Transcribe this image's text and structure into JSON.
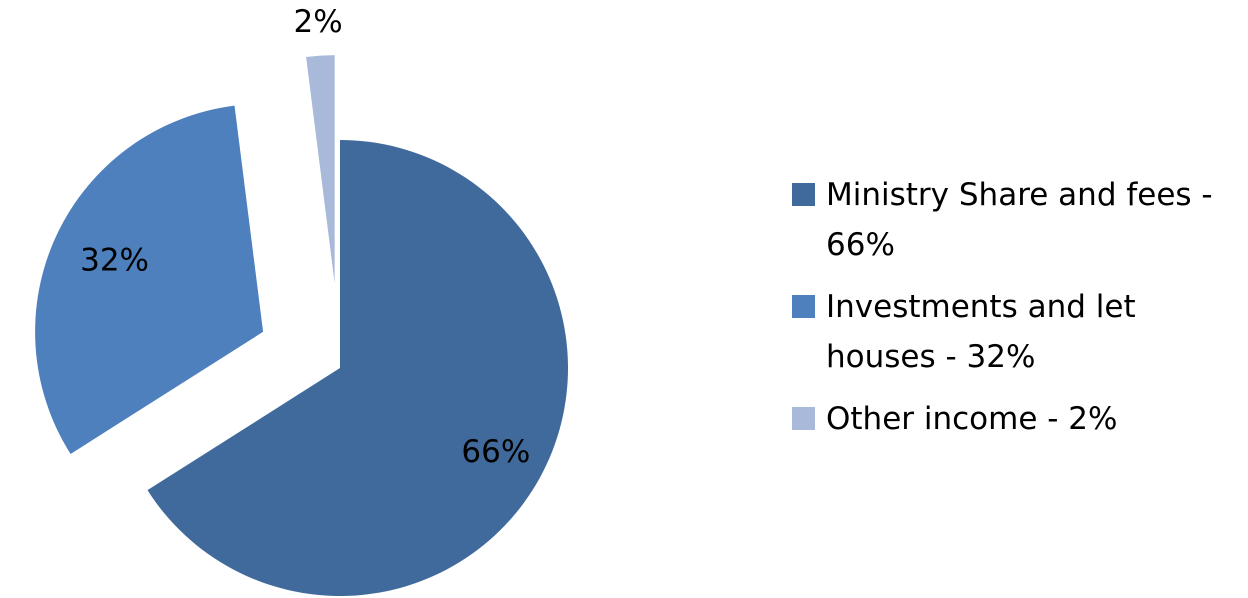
{
  "chart_data": {
    "type": "pie",
    "slices": [
      {
        "label": "Ministry Share and fees - 66%",
        "value": 66,
        "data_label": "66%",
        "color": "#416a9c",
        "exploded": false
      },
      {
        "label": "Investments and let houses - 32%",
        "value": 32,
        "data_label": "32%",
        "color": "#4e80bd",
        "exploded": true
      },
      {
        "label": "Other income - 2%",
        "value": 2,
        "data_label": "2%",
        "color": "#a8b9d9",
        "exploded": true
      }
    ],
    "legend_position": "right",
    "start_angle_deg": 0,
    "direction": "clockwise"
  }
}
